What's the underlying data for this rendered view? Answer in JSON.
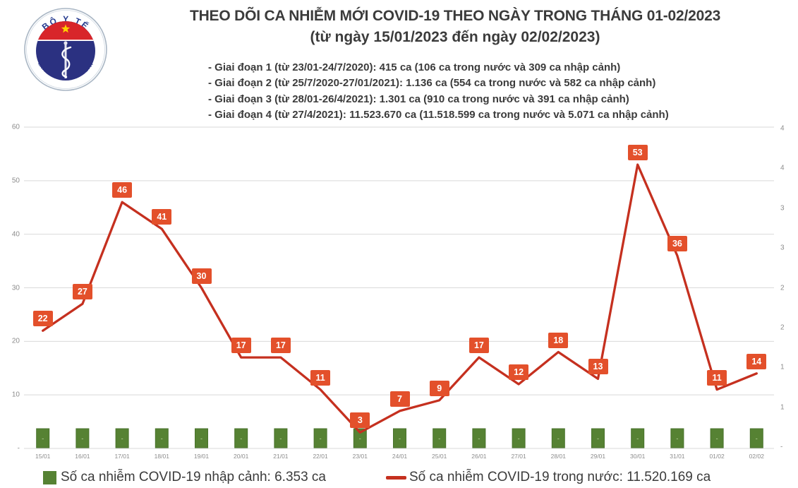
{
  "logo": {
    "top_text": "BỘ Y TẾ",
    "bottom_text": "MINISTRY OF HEALTH"
  },
  "header": {
    "title": "THEO DÕI CA NHIỄM MỚI COVID-19 THEO NGÀY TRONG THÁNG 01-02/2023",
    "subtitle": "(từ ngày 15/01/2023 đến ngày 02/02/2023)",
    "phases": [
      "- Giai đoạn 1 (từ 23/01-24/7/2020): 415 ca (106 ca trong nước và 309 ca nhập cảnh)",
      "- Giai đoạn 2 (từ 25/7/2020-27/01/2021): 1.136 ca (554 ca trong nước và 582 ca nhập cảnh)",
      "- Giai đoạn 3 (từ 28/01-26/4/2021): 1.301 ca (910 ca trong nước và 391 ca nhập cảnh)",
      "- Giai đoạn 4 (từ 27/4/2021): 11.523.670 ca (11.518.599 ca trong nước và 5.071 ca nhập cảnh)"
    ]
  },
  "chart_data": {
    "type": "line",
    "title": "THEO DÕI CA NHIỄM MỚI COVID-19 THEO NGÀY TRONG THÁNG 01-02/2023",
    "categories": [
      "15/01",
      "16/01",
      "17/01",
      "18/01",
      "19/01",
      "20/01",
      "21/01",
      "22/01",
      "23/01",
      "24/01",
      "25/01",
      "26/01",
      "27/01",
      "28/01",
      "29/01",
      "30/01",
      "31/01",
      "01/02",
      "02/02"
    ],
    "series": [
      {
        "name": "Số ca nhiễm COVID-19 trong nước",
        "type": "line",
        "color": "#c5301f",
        "label_bg": "#e3502b",
        "values": [
          22,
          27,
          46,
          41,
          30,
          17,
          17,
          11,
          3,
          7,
          9,
          17,
          12,
          18,
          13,
          53,
          36,
          11,
          14
        ]
      },
      {
        "name": "Số ca nhiễm COVID-19 nhập cảnh",
        "type": "bar",
        "color": "#568233",
        "border_color": "#49732c",
        "bar_label": "-",
        "values": [
          0,
          0,
          0,
          0,
          0,
          0,
          0,
          0,
          0,
          0,
          0,
          0,
          0,
          0,
          0,
          0,
          0,
          0,
          0
        ]
      }
    ],
    "left_axis_ticks": [
      {
        "label": "60",
        "value": 60
      },
      {
        "label": "50",
        "value": 50
      },
      {
        "label": "40",
        "value": 40
      },
      {
        "label": "30",
        "value": 30
      },
      {
        "label": "20",
        "value": 20
      },
      {
        "label": "10",
        "value": 10
      },
      {
        "label": "-",
        "value": 0
      }
    ],
    "right_axis_ticks": [
      "4",
      "4",
      "3",
      "3",
      "2",
      "2",
      "1",
      "1",
      "-"
    ],
    "ylim": [
      0,
      60
    ],
    "grid": true,
    "gridline_color": "#d9d9d9",
    "legend_position": "bottom"
  },
  "legend": {
    "imported_label": "Số ca nhiễm COVID-19 nhập cảnh: 6.353 ca",
    "domestic_label": "Số ca nhiễm COVID-19 trong nước: 11.520.169 ca"
  }
}
